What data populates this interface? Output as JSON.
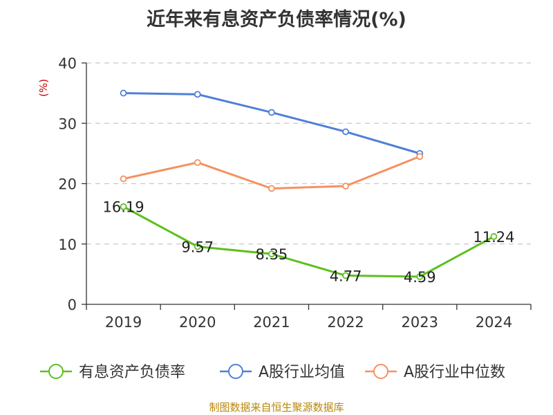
{
  "chart_data": {
    "type": "line",
    "title": "近年来有息资产负债率情况(%)",
    "ylabel": "(%)",
    "categories": [
      "2019",
      "2020",
      "2021",
      "2022",
      "2023",
      "2024"
    ],
    "ylim": [
      0,
      40
    ],
    "yticks": [
      0,
      10,
      20,
      30,
      40
    ],
    "grid": true,
    "legend_position": "bottom",
    "series": [
      {
        "name": "有息资产负债率",
        "color": "#5cc01e",
        "values": [
          16.19,
          9.57,
          8.35,
          4.77,
          4.59,
          11.24
        ],
        "labels": [
          "16.19",
          "9.57",
          "8.35",
          "4.77",
          "4.59",
          "11.24"
        ]
      },
      {
        "name": "A股行业均值",
        "color": "#4f7fd8",
        "values": [
          35.0,
          34.8,
          31.8,
          28.6,
          25.0,
          null
        ]
      },
      {
        "name": "A股行业中位数",
        "color": "#f59160",
        "values": [
          20.8,
          23.5,
          19.2,
          19.6,
          24.5,
          null
        ]
      }
    ]
  },
  "footer": {
    "source": "制图数据来自恒生聚源数据库"
  }
}
